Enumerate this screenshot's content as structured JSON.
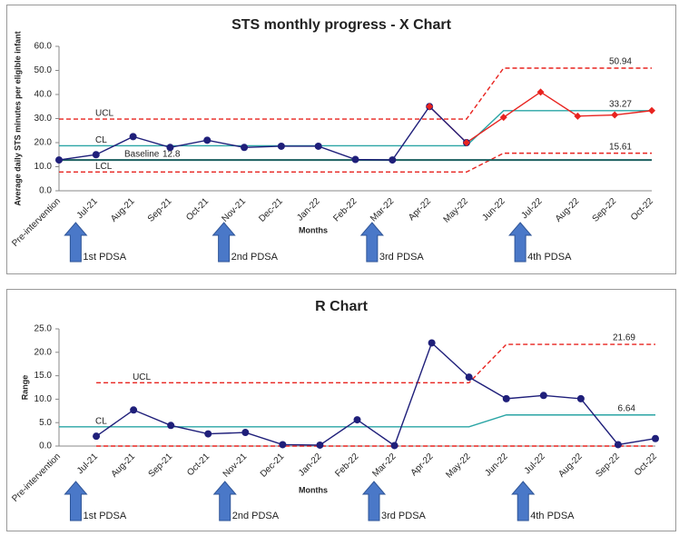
{
  "chart_data": [
    {
      "type": "line",
      "title": "STS monthly progress - X Chart",
      "x_label": "Months",
      "y_label": "Average daily STS minutes per eligible infant",
      "categories": [
        "Pre-intervention",
        "Jul-21",
        "Aug-21",
        "Sep-21",
        "Oct-21",
        "Nov-21",
        "Dec-21",
        "Jan-22",
        "Feb-22",
        "Mar-22",
        "Apr-22",
        "May-22",
        "Jun-22",
        "Jul-22",
        "Aug-22",
        "Sep-22",
        "Oct-22"
      ],
      "ylim": [
        0,
        60
      ],
      "yticks": [
        {
          "value": 0,
          "label": "0.0"
        },
        {
          "value": 10,
          "label": "10.0"
        },
        {
          "value": 20,
          "label": "20.0"
        },
        {
          "value": 30,
          "label": "30.0"
        },
        {
          "value": 40,
          "label": "40.0"
        },
        {
          "value": 50,
          "label": "50.0"
        },
        {
          "value": 60,
          "label": "60.0"
        }
      ],
      "series": [
        {
          "name": "UCL",
          "color": "#e8231f",
          "dash": true,
          "end_label": true,
          "values": [
            29.8,
            29.8,
            29.8,
            29.8,
            29.8,
            29.8,
            29.8,
            29.8,
            29.8,
            29.8,
            29.8,
            29.8,
            50.94,
            50.94,
            50.94,
            50.94,
            50.94
          ]
        },
        {
          "name": "CL",
          "color": "#2aa5a5",
          "end_label": true,
          "values": [
            18.7,
            18.7,
            18.7,
            18.7,
            18.7,
            18.7,
            18.7,
            18.7,
            18.7,
            18.7,
            18.7,
            18.7,
            33.27,
            33.27,
            33.27,
            33.27,
            33.27
          ]
        },
        {
          "name": "LCL",
          "color": "#e8231f",
          "dash": true,
          "end_label": true,
          "values": [
            7.8,
            7.8,
            7.8,
            7.8,
            7.8,
            7.8,
            7.8,
            7.8,
            7.8,
            7.8,
            7.8,
            7.8,
            15.61,
            15.61,
            15.61,
            15.61,
            15.61
          ]
        },
        {
          "name": "Baseline",
          "color": "#1b5f5f",
          "thick": true,
          "start_label": true,
          "values": [
            12.8,
            12.8,
            12.8,
            12.8,
            12.8,
            12.8,
            12.8,
            12.8,
            12.8,
            12.8,
            12.8,
            12.8,
            12.8,
            12.8,
            12.8,
            12.8,
            12.8
          ]
        },
        {
          "color": "#e8231f",
          "marker": "diamond",
          "values": [
            null,
            null,
            null,
            null,
            null,
            null,
            null,
            null,
            null,
            null,
            35,
            20,
            30.5,
            41,
            31,
            31.5,
            33.3
          ]
        },
        {
          "color": "#1f1f7a",
          "marker": "circle",
          "values": [
            12.8,
            15,
            22.5,
            18,
            21,
            18,
            18.5,
            18.5,
            13,
            12.8,
            35,
            20,
            null,
            null,
            null,
            null,
            null
          ]
        }
      ],
      "annotations": [
        {
          "text": "1st PDSA",
          "category": "Jul-21"
        },
        {
          "text": "2nd PDSA",
          "category": "Nov-21"
        },
        {
          "text": "3rd PDSA",
          "category": "Mar-22"
        },
        {
          "text": "4th PDSA",
          "category": "Jul-22"
        }
      ]
    },
    {
      "type": "line",
      "title": "R Chart",
      "x_label": "Months",
      "y_label": "Range",
      "categories": [
        "Pre-intervention",
        "Jul-21",
        "Aug-21",
        "Sep-21",
        "Oct-21",
        "Nov-21",
        "Dec-21",
        "Jan-22",
        "Feb-22",
        "Mar-22",
        "Apr-22",
        "May-22",
        "Jun-22",
        "Jul-22",
        "Aug-22",
        "Sep-22",
        "Oct-22"
      ],
      "ylim": [
        0,
        25
      ],
      "yticks": [
        {
          "value": 0,
          "label": "0.0"
        },
        {
          "value": 5,
          "label": "5.0"
        },
        {
          "value": 10,
          "label": "10.0"
        },
        {
          "value": 15,
          "label": "15.0"
        },
        {
          "value": 20,
          "label": "20.0"
        },
        {
          "value": 25,
          "label": "25.0"
        }
      ],
      "series": [
        {
          "name": "UCL",
          "color": "#e8231f",
          "dash": true,
          "end_label": true,
          "values": [
            null,
            13.5,
            13.5,
            13.5,
            13.5,
            13.5,
            13.5,
            13.5,
            13.5,
            13.5,
            13.5,
            13.5,
            21.69,
            21.69,
            21.69,
            21.69,
            21.69
          ]
        },
        {
          "name": "CL",
          "color": "#2aa5a5",
          "end_label": true,
          "values": [
            4.1,
            4.1,
            4.1,
            4.1,
            4.1,
            4.1,
            4.1,
            4.1,
            4.1,
            4.1,
            4.1,
            4.1,
            6.64,
            6.64,
            6.64,
            6.64,
            6.64
          ]
        },
        {
          "color": "#e8231f",
          "dash": true,
          "values": [
            null,
            0,
            0,
            0,
            0,
            0,
            0,
            0,
            0,
            0,
            0,
            0,
            0,
            0,
            0,
            0,
            0
          ]
        },
        {
          "color": "#1f1f7a",
          "marker": "circle",
          "values": [
            null,
            2.1,
            7.7,
            4.4,
            2.6,
            2.9,
            0.3,
            0.2,
            5.6,
            0.1,
            22,
            14.7,
            10.1,
            10.8,
            10.1,
            0.3,
            1.6
          ]
        }
      ],
      "annotations": [
        {
          "text": "1st PDSA",
          "category": "Jul-21"
        },
        {
          "text": "2nd PDSA",
          "category": "Nov-21"
        },
        {
          "text": "3rd PDSA",
          "category": "Mar-22"
        },
        {
          "text": "4th PDSA",
          "category": "Jul-22"
        }
      ]
    }
  ]
}
